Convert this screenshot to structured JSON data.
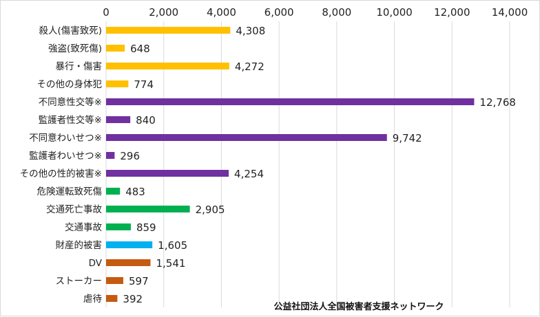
{
  "chart_data": {
    "type": "bar",
    "orientation": "horizontal",
    "title": "",
    "xlabel": "",
    "ylabel": "",
    "xlim": [
      0,
      14000
    ],
    "x_ticks": [
      0,
      2000,
      4000,
      6000,
      8000,
      10000,
      12000,
      14000
    ],
    "x_tick_labels": [
      "0",
      "2,000",
      "4,000",
      "6,000",
      "8,000",
      "10,000",
      "12,000",
      "14,000"
    ],
    "grid": "vertical",
    "legend": "none",
    "source": "公益社団法人全国被害者支援ネットワーク",
    "categories": [
      "殺人(傷害致死)",
      "強盗(致死傷)",
      "暴行・傷害",
      "その他の身体犯",
      "不同意性交等※",
      "監護者性交等※",
      "不同意わいせつ※",
      "監護者わいせつ※",
      "その他の性的被害※",
      "危険運転致死傷",
      "交通死亡事故",
      "交通事故",
      "財産的被害",
      "DV",
      "ストーカー",
      "虐待"
    ],
    "values": [
      4308,
      648,
      4272,
      774,
      12768,
      840,
      9742,
      296,
      4254,
      483,
      2905,
      859,
      1605,
      1541,
      597,
      392
    ],
    "value_labels": [
      "4,308",
      "648",
      "4,272",
      "774",
      "12,768",
      "840",
      "9,742",
      "296",
      "4,254",
      "483",
      "2,905",
      "859",
      "1,605",
      "1,541",
      "597",
      "392"
    ],
    "colors": [
      "#FFC000",
      "#FFC000",
      "#FFC000",
      "#FFC000",
      "#7030A0",
      "#7030A0",
      "#7030A0",
      "#7030A0",
      "#7030A0",
      "#00B050",
      "#00B050",
      "#00B050",
      "#00B0F0",
      "#C55A11",
      "#C55A11",
      "#C55A11"
    ]
  }
}
